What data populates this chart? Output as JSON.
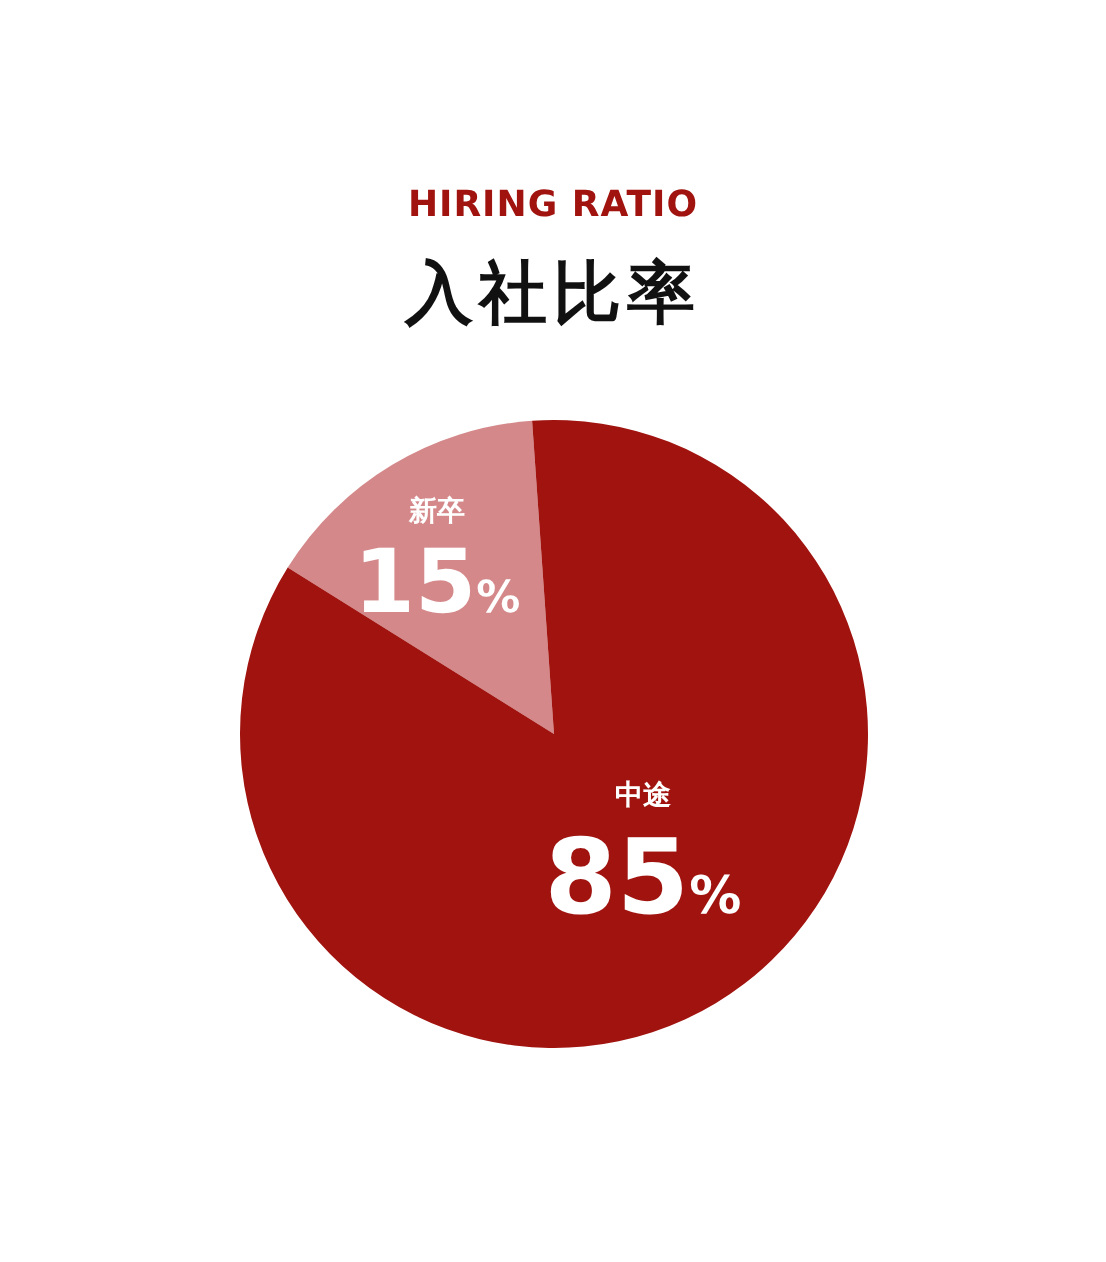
{
  "chart_data": {
    "type": "pie",
    "title": "入社比率",
    "subtitle": "HIRING RATIO",
    "categories": [
      "新卒",
      "中途"
    ],
    "values": [
      15,
      85
    ],
    "value_labels": [
      "15%",
      "85%"
    ],
    "colors": [
      "#d4888a",
      "#a0130f"
    ]
  }
}
